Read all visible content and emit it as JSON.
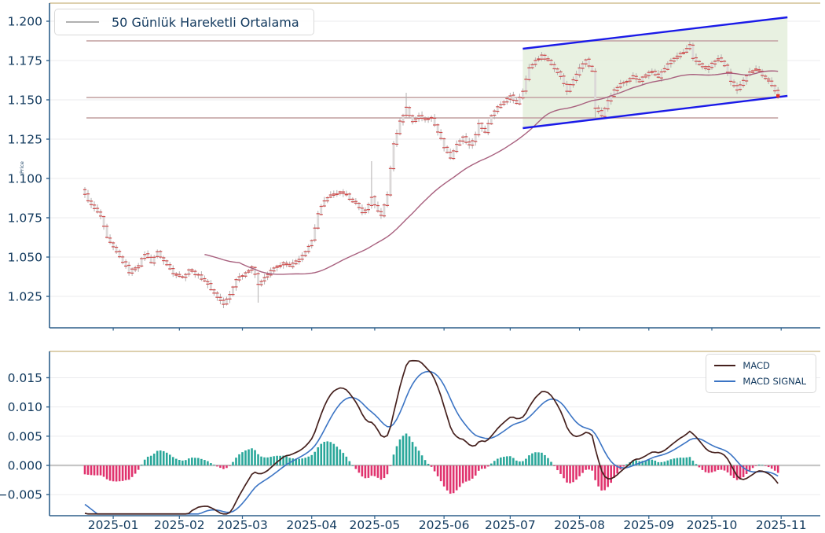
{
  "price_panel": {
    "ylabel": "Price",
    "legend_label": "50 Günlük Hareketli Ortalama",
    "yticks": [
      {
        "value": 1.025,
        "label": "1.025"
      },
      {
        "value": 1.05,
        "label": "1.050"
      },
      {
        "value": 1.075,
        "label": "1.075"
      },
      {
        "value": 1.1,
        "label": "1.100"
      },
      {
        "value": 1.125,
        "label": "1.125"
      },
      {
        "value": 1.15,
        "label": "1.150"
      },
      {
        "value": 1.175,
        "label": "1.175"
      },
      {
        "value": 1.2,
        "label": "1.200"
      }
    ]
  },
  "macd_panel": {
    "legend": [
      "MACD",
      "MACD SIGNAL"
    ],
    "yticks": [
      {
        "value": -0.005,
        "label": "−0.005"
      },
      {
        "value": 0.0,
        "label": "0.000"
      },
      {
        "value": 0.005,
        "label": "0.005"
      },
      {
        "value": 0.01,
        "label": "0.010"
      },
      {
        "value": 0.015,
        "label": "0.015"
      }
    ]
  },
  "x_ticks": [
    {
      "i": 9,
      "label": "2025-01"
    },
    {
      "i": 30,
      "label": "2025-02"
    },
    {
      "i": 50,
      "label": "2025-03"
    },
    {
      "i": 72,
      "label": "2025-04"
    },
    {
      "i": 92,
      "label": "2025-05"
    },
    {
      "i": 114,
      "label": "2025-06"
    },
    {
      "i": 135,
      "label": "2025-07"
    },
    {
      "i": 157,
      "label": "2025-08"
    },
    {
      "i": 179,
      "label": "2025-09"
    },
    {
      "i": 199,
      "label": "2025-10"
    },
    {
      "i": 221,
      "label": "2025-11"
    }
  ],
  "colors": {
    "axis_spine": "#2d5f8a",
    "axis_top_spine": "#d8c9a2",
    "tick_label": "#123a5e",
    "grid": "#ebebee",
    "candle_wick": "#b3b0b0",
    "candle_body": "#dbd8d8",
    "candle_oc_tick": "#cf4a4a",
    "ma_line": "#a8607e",
    "level_line": "#c9abab",
    "channel_line": "#1a1ae8",
    "channel_fill": "#e5f0de",
    "last_marker": "#e03028",
    "macd_line": "#45201d",
    "signal_line": "#3b74c4",
    "hist_pos": "#2aa79a",
    "hist_neg": "#e0336e",
    "zero_line": "#c6c6c6"
  },
  "chart_data": {
    "type": "candlestick",
    "title": "",
    "x_label": "",
    "y_label": "Price",
    "n_days": 221,
    "price_axis_range": [
      1.005,
      1.2115
    ],
    "macd_axis_range": [
      -0.0086,
      0.0195
    ],
    "close_anchors": [
      [
        0,
        1.0895
      ],
      [
        2,
        1.083
      ],
      [
        5,
        1.076
      ],
      [
        7,
        1.062
      ],
      [
        10,
        1.053
      ],
      [
        12,
        1.047
      ],
      [
        14,
        1.0405
      ],
      [
        17,
        1.045
      ],
      [
        19,
        1.052
      ],
      [
        21,
        1.047
      ],
      [
        23,
        1.053
      ],
      [
        26,
        1.045
      ],
      [
        28,
        1.04
      ],
      [
        31,
        1.037
      ],
      [
        33,
        1.042
      ],
      [
        36,
        1.038
      ],
      [
        38,
        1.035
      ],
      [
        41,
        1.027
      ],
      [
        44,
        1.02
      ],
      [
        46,
        1.026
      ],
      [
        48,
        1.036
      ],
      [
        51,
        1.04
      ],
      [
        53,
        1.044
      ],
      [
        55,
        1.033
      ],
      [
        58,
        1.039
      ],
      [
        60,
        1.043
      ],
      [
        63,
        1.046
      ],
      [
        65,
        1.044
      ],
      [
        68,
        1.049
      ],
      [
        70,
        1.053
      ],
      [
        72,
        1.06
      ],
      [
        74,
        1.078
      ],
      [
        76,
        1.086
      ],
      [
        78,
        1.089
      ],
      [
        81,
        1.091
      ],
      [
        83,
        1.089
      ],
      [
        86,
        1.084
      ],
      [
        88,
        1.078
      ],
      [
        90,
        1.083
      ],
      [
        91,
        1.088
      ],
      [
        93,
        1.079
      ],
      [
        94,
        1.076
      ],
      [
        96,
        1.09
      ],
      [
        98,
        1.122
      ],
      [
        100,
        1.136
      ],
      [
        102,
        1.145
      ],
      [
        104,
        1.136
      ],
      [
        106,
        1.14
      ],
      [
        108,
        1.137
      ],
      [
        110,
        1.139
      ],
      [
        112,
        1.13
      ],
      [
        114,
        1.12
      ],
      [
        116,
        1.113
      ],
      [
        118,
        1.122
      ],
      [
        120,
        1.126
      ],
      [
        122,
        1.121
      ],
      [
        124,
        1.128
      ],
      [
        125,
        1.135
      ],
      [
        127,
        1.129
      ],
      [
        129,
        1.14
      ],
      [
        131,
        1.145
      ],
      [
        133,
        1.149
      ],
      [
        135,
        1.152
      ],
      [
        137,
        1.148
      ],
      [
        139,
        1.156
      ],
      [
        141,
        1.17
      ],
      [
        143,
        1.175
      ],
      [
        145,
        1.178
      ],
      [
        147,
        1.175
      ],
      [
        149,
        1.17
      ],
      [
        151,
        1.165
      ],
      [
        153,
        1.156
      ],
      [
        155,
        1.163
      ],
      [
        157,
        1.17
      ],
      [
        159,
        1.176
      ],
      [
        161,
        1.168
      ],
      [
        162,
        1.145
      ],
      [
        164,
        1.14
      ],
      [
        166,
        1.15
      ],
      [
        168,
        1.156
      ],
      [
        170,
        1.16
      ],
      [
        172,
        1.162
      ],
      [
        174,
        1.165
      ],
      [
        176,
        1.162
      ],
      [
        178,
        1.166
      ],
      [
        180,
        1.168
      ],
      [
        182,
        1.165
      ],
      [
        184,
        1.17
      ],
      [
        186,
        1.175
      ],
      [
        188,
        1.178
      ],
      [
        190,
        1.18
      ],
      [
        192,
        1.185
      ],
      [
        193,
        1.176
      ],
      [
        195,
        1.172
      ],
      [
        197,
        1.17
      ],
      [
        199,
        1.173
      ],
      [
        201,
        1.176
      ],
      [
        203,
        1.172
      ],
      [
        205,
        1.162
      ],
      [
        207,
        1.156
      ],
      [
        209,
        1.162
      ],
      [
        211,
        1.168
      ],
      [
        213,
        1.17
      ],
      [
        215,
        1.166
      ],
      [
        217,
        1.162
      ],
      [
        219,
        1.156
      ],
      [
        220,
        1.1525
      ]
    ],
    "spikes": [
      {
        "i": 44,
        "low": 1.0175
      },
      {
        "i": 55,
        "low": 1.021
      },
      {
        "i": 91,
        "high": 1.111
      },
      {
        "i": 102,
        "high": 1.1545
      },
      {
        "i": 162,
        "low": 1.1385
      },
      {
        "i": 192,
        "high": 1.1875
      }
    ],
    "noise": 0.0012,
    "last_close": 1.1525,
    "levels": [
      1.1875,
      1.1515,
      1.1385
    ],
    "channel": {
      "i0": 139,
      "i1": 223,
      "upper": [
        1.1825,
        1.2025
      ],
      "lower": [
        1.132,
        1.1525
      ]
    },
    "moving_average": {
      "window": 50,
      "plot_from_index": 38
    },
    "macd_params": {
      "fast": 12,
      "slow": 26,
      "signal": 9
    },
    "pre_window_close_ramp": {
      "from": 1.126,
      "to": 1.0915,
      "n": 20
    }
  }
}
